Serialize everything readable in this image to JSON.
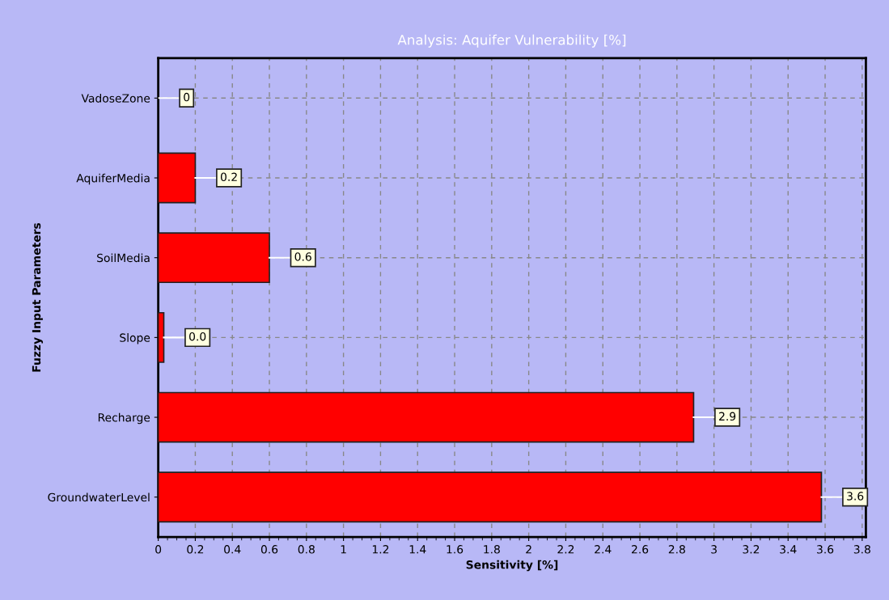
{
  "chart_data": {
    "type": "bar",
    "orientation": "horizontal",
    "title": "Analysis: Aquifer Vulnerability [%]",
    "xlabel": "Sensitivity [%]",
    "ylabel": "Fuzzy Input Parameters",
    "categories": [
      "VadoseZone",
      "AquiferMedia",
      "SoilMedia",
      "Slope",
      "Recharge",
      "GroundwaterLevel"
    ],
    "values": [
      0,
      0.2,
      0.6,
      0.03,
      2.89,
      3.58
    ],
    "value_labels": [
      "0",
      "0.2",
      "0.6",
      "0.0",
      "2.9",
      "3.6"
    ],
    "color": "#ff0000",
    "xlim": [
      0,
      3.82
    ],
    "xticks": [
      0,
      0.2,
      0.4,
      0.6,
      0.8,
      1,
      1.2,
      1.4,
      1.6,
      1.8,
      2,
      2.2,
      2.4,
      2.6,
      2.8,
      3,
      3.2,
      3.4,
      3.6,
      3.8
    ],
    "grid": true
  }
}
